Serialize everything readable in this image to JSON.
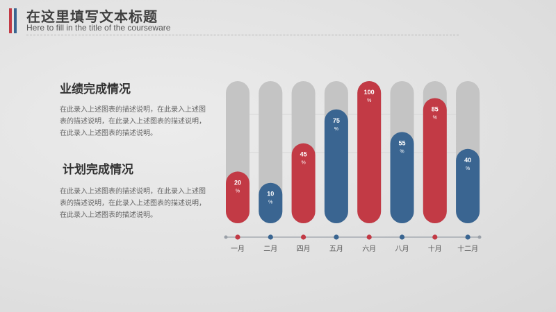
{
  "header": {
    "title": "在这里填写文本标题",
    "subtitle": "Here to fill in the title of the courseware"
  },
  "sections": [
    {
      "heading": "业绩完成情况",
      "body": "在此录入上述图表的描述说明，在此录入上述图表的描述说明，在此录入上述图表的描述说明，在此录入上述图表的描述说明。"
    },
    {
      "heading": "计划完成情况",
      "body": "在此录入上述图表的描述说明，在此录入上述图表的描述说明，在此录入上述图表的描述说明，在此录入上述图表的描述说明。"
    }
  ],
  "colors": {
    "red": "#c23a45",
    "blue": "#3a6591",
    "track": "#c4c4c4",
    "text": "#3f3f3f"
  },
  "chart_data": {
    "type": "bar",
    "categories": [
      "一月",
      "二月",
      "四月",
      "五月",
      "六月",
      "八月",
      "十月",
      "十二月"
    ],
    "values": [
      20,
      10,
      45,
      75,
      100,
      55,
      85,
      40
    ],
    "value_suffix": "%",
    "bar_colors": [
      "red",
      "blue",
      "red",
      "blue",
      "red",
      "blue",
      "red",
      "blue"
    ],
    "ylim": [
      0,
      100
    ],
    "grid": false,
    "legend": "none"
  }
}
